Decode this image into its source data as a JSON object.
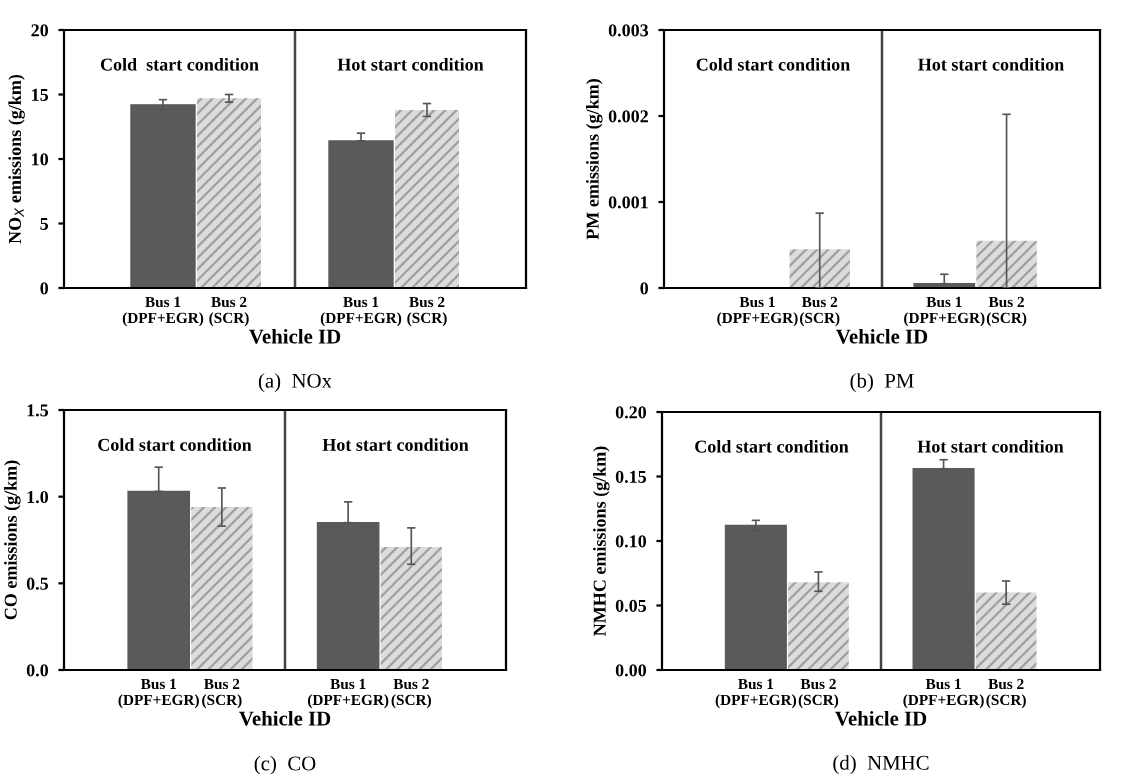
{
  "chart_data": [
    {
      "type": "bar",
      "title": "(a)  NOx",
      "xlabel": "Vehicle ID",
      "ylabel": "NO$_{X}$ emissions (g/km)",
      "categories": [
        null,
        "Bus 1\n(DPF+EGR)",
        "Bus 2\n(SCR)",
        null,
        "Bus 1\n(DPF+EGR)",
        "Bus 2\n(SCR)",
        null
      ],
      "values": [
        null,
        14.2,
        14.7,
        null,
        11.4,
        13.8,
        null
      ],
      "errors": [
        null,
        [
          13.8,
          14.6
        ],
        [
          14.4,
          15.0
        ],
        null,
        [
          11.4,
          12.0
        ],
        [
          13.3,
          14.3
        ],
        null
      ],
      "colors": [
        "#5a5a5a",
        "#5a5a5a",
        "#dcdcdc",
        "#5a5a5a",
        "#5a5a5a",
        "#dcdcdc",
        "#5a5a5a"
      ],
      "ylim": [
        0,
        20
      ],
      "yticks": [
        0,
        5,
        10,
        15,
        20
      ],
      "annotations": [
        "Cold  start condition",
        "Hot start condition"
      ]
    },
    {
      "type": "bar",
      "title": "(b)  PM",
      "xlabel": "Vehicle ID",
      "ylabel": "PM emissions (g/km)",
      "categories": [
        null,
        "Bus 1\n(DPF+EGR)",
        "Bus 2\n(SCR)",
        null,
        "Bus 1\n(DPF+EGR)",
        "Bus 2\n(SCR)",
        null
      ],
      "values": [
        null,
        0,
        0.00045,
        null,
        5e-05,
        0.00055,
        null
      ],
      "errors": [
        null,
        null,
        [
          0,
          0.00087
        ],
        null,
        [
          5e-05,
          0.00016
        ],
        [
          0,
          0.00202
        ],
        null
      ],
      "colors": [
        "#5a5a5a",
        "#5a5a5a",
        "#dcdcdc",
        "#5a5a5a",
        "#5a5a5a",
        "#dcdcdc",
        "#5a5a5a"
      ],
      "ylim": [
        0,
        0.003
      ],
      "yticks": [
        0,
        0.001,
        0.002,
        0.003
      ],
      "annotations": [
        "Cold start condition",
        "Hot start condition"
      ]
    },
    {
      "type": "bar",
      "title": "(c)  CO",
      "xlabel": "Vehicle ID",
      "ylabel": "CO emissions (g/km)",
      "categories": [
        null,
        "Bus 1\n(DPF+EGR)",
        "Bus 2\n(SCR)",
        null,
        "Bus 1\n(DPF+EGR)",
        "Bus 2\n(SCR)",
        null
      ],
      "values": [
        null,
        1.03,
        0.94,
        null,
        0.85,
        0.71,
        null
      ],
      "errors": [
        null,
        [
          1.03,
          1.17
        ],
        [
          0.83,
          1.05
        ],
        null,
        [
          0.85,
          0.97
        ],
        [
          0.61,
          0.82
        ],
        null
      ],
      "colors": [
        "#5a5a5a",
        "#5a5a5a",
        "#dcdcdc",
        "#5a5a5a",
        "#5a5a5a",
        "#dcdcdc",
        "#5a5a5a"
      ],
      "ylim": [
        0,
        1.5
      ],
      "yticks": [
        {
          "value": 0,
          "label": "0.0"
        },
        {
          "value": 0.5,
          "label": "0.5"
        },
        {
          "value": 1,
          "label": "1.0"
        },
        {
          "value": 1.5,
          "label": "1.5"
        }
      ],
      "annotations": [
        "Cold start condition",
        "Hot start condition"
      ]
    },
    {
      "type": "bar",
      "title": "(d)  NMHC",
      "xlabel": "Vehicle ID",
      "ylabel": "NMHC emissions (g/km)",
      "categories": [
        null,
        "Bus 1\n(DPF+EGR)",
        "Bus 2\n(SCR)",
        null,
        "Bus 1\n(DPF+EGR)",
        "Bus 2\n(SCR)",
        null
      ],
      "values": [
        null,
        0.112,
        0.068,
        null,
        0.156,
        0.06,
        null
      ],
      "errors": [
        null,
        [
          0.108,
          0.116
        ],
        [
          0.061,
          0.076
        ],
        null,
        [
          0.156,
          0.163
        ],
        [
          0.051,
          0.069
        ],
        null
      ],
      "colors": [
        "#5a5a5a",
        "#5a5a5a",
        "#dcdcdc",
        "#5a5a5a",
        "#5a5a5a",
        "#dcdcdc",
        "#5a5a5a"
      ],
      "ylim": [
        0,
        0.2
      ],
      "yticks": [
        {
          "value": 0,
          "label": "0.00"
        },
        {
          "value": 0.05,
          "label": "0.05"
        },
        {
          "value": 0.1,
          "label": "0.10"
        },
        {
          "value": 0.15,
          "label": "0.15"
        },
        {
          "value": 0.2,
          "label": "0.20"
        }
      ],
      "annotations": [
        "Cold start condition",
        "Hot start condition"
      ]
    }
  ]
}
